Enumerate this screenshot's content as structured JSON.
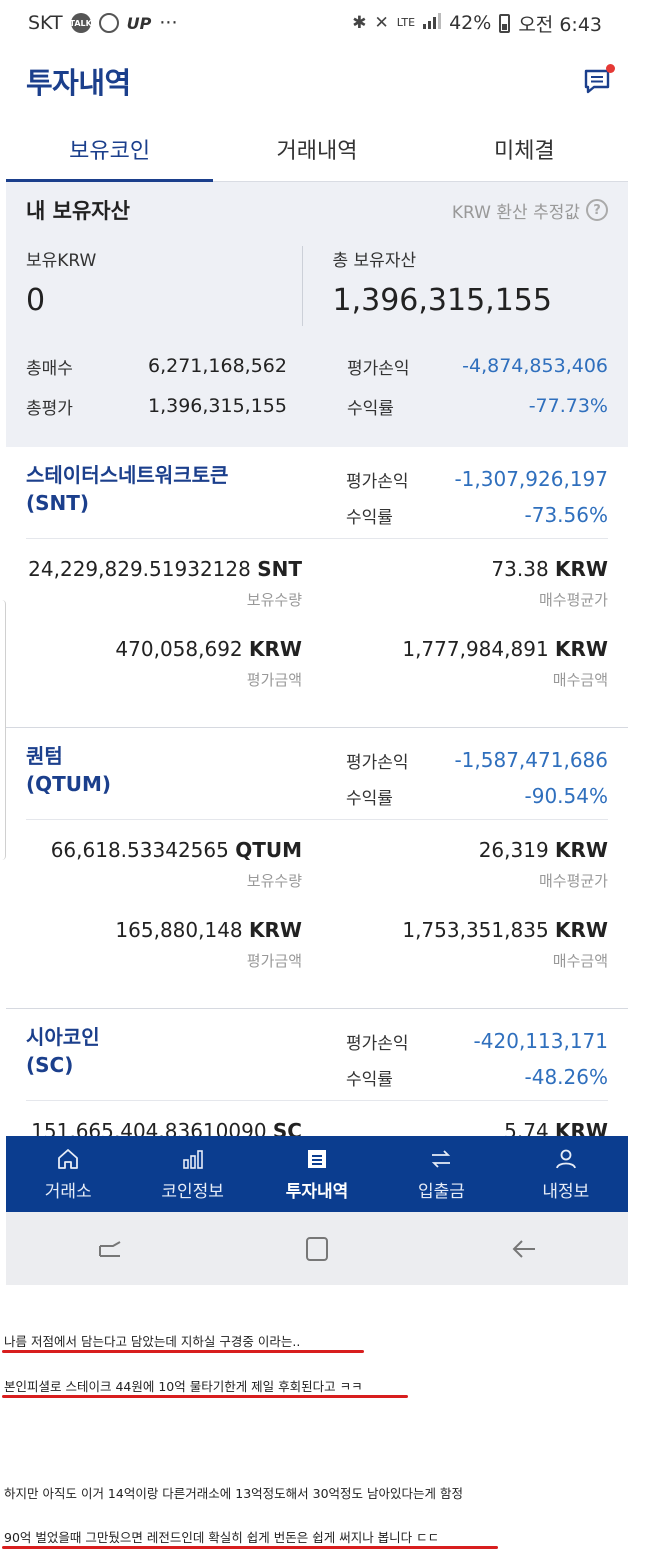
{
  "status_bar": {
    "carrier": "SKT",
    "talk_icon_text": "TALK",
    "up_text": "UP",
    "more": "···",
    "network": "LTE",
    "battery": "42%",
    "time": "오전 6:43"
  },
  "header": {
    "title": "투자내역"
  },
  "tabs": [
    {
      "label": "보유코인",
      "active": true
    },
    {
      "label": "거래내역",
      "active": false
    },
    {
      "label": "미체결",
      "active": false
    }
  ],
  "summary": {
    "title": "내 보유자산",
    "note": "KRW 환산 추정값",
    "holding_krw_label": "보유KRW",
    "holding_krw_value": "0",
    "total_assets_label": "총 보유자산",
    "total_assets_value": "1,396,315,155",
    "total_buy_label": "총매수",
    "total_buy_value": "6,271,168,562",
    "pl_label": "평가손익",
    "pl_value": "-4,874,853,406",
    "total_eval_label": "총평가",
    "total_eval_value": "1,396,315,155",
    "return_label": "수익률",
    "return_value": "-77.73%"
  },
  "coins": [
    {
      "name": "스테이터스네트워크토큰",
      "symbol": "(SNT)",
      "pl_label": "평가손익",
      "pl_value": "-1,307,926,197",
      "return_label": "수익률",
      "return_value": "-73.56%",
      "qty_value": "24,229,829.51932128",
      "qty_unit": "SNT",
      "qty_label": "보유수량",
      "avg_value": "73.38",
      "avg_unit": "KRW",
      "avg_label": "매수평균가",
      "eval_value": "470,058,692",
      "eval_unit": "KRW",
      "eval_label": "평가금액",
      "buy_value": "1,777,984,891",
      "buy_unit": "KRW",
      "buy_label": "매수금액"
    },
    {
      "name": "퀀텀",
      "symbol": "(QTUM)",
      "pl_label": "평가손익",
      "pl_value": "-1,587,471,686",
      "return_label": "수익률",
      "return_value": "-90.54%",
      "qty_value": "66,618.53342565",
      "qty_unit": "QTUM",
      "qty_label": "보유수량",
      "avg_value": "26,319",
      "avg_unit": "KRW",
      "avg_label": "매수평균가",
      "eval_value": "165,880,148",
      "eval_unit": "KRW",
      "eval_label": "평가금액",
      "buy_value": "1,753,351,835",
      "buy_unit": "KRW",
      "buy_label": "매수금액"
    },
    {
      "name": "시아코인",
      "symbol": "(SC)",
      "pl_label": "평가손익",
      "pl_value": "-420,113,171",
      "return_label": "수익률",
      "return_value": "-48.26%",
      "qty_value": "151,665,404.83610090",
      "qty_unit": "SC",
      "avg_value": "5.74",
      "avg_unit": "KRW"
    }
  ],
  "bottom_nav": [
    {
      "label": "거래소",
      "icon": "home-icon",
      "active": false
    },
    {
      "label": "코인정보",
      "icon": "bar-chart-icon",
      "active": false
    },
    {
      "label": "투자내역",
      "icon": "document-icon",
      "active": true
    },
    {
      "label": "입출금",
      "icon": "transfer-icon",
      "active": false
    },
    {
      "label": "내정보",
      "icon": "user-icon",
      "active": false
    }
  ],
  "system_nav": [
    "recent-apps-icon",
    "home-button-icon",
    "back-icon"
  ],
  "caption": {
    "line1": "나름 저점에서 담는다고 담았는데 지하실 구경중 이라는..",
    "line2": "본인피셜로 스테이크 44원에 10억 물타기한게 제일 후회된다고 ㅋㅋ",
    "line3": "하지만 아직도 이거 14억이랑 다른거래소에 13억정도해서 30억정도 남아있다는게 함정",
    "line4": "90억 벌었을때 그만뒀으면 레전드인데 확실히 쉽게 번돈은 쉽게 써지나 봅니다 ㄷㄷ",
    "underline_color": "#d81e1e"
  },
  "colors": {
    "brand": "#1b3f8c",
    "nav": "#0b3d8f",
    "negative": "#2f6fbd"
  }
}
